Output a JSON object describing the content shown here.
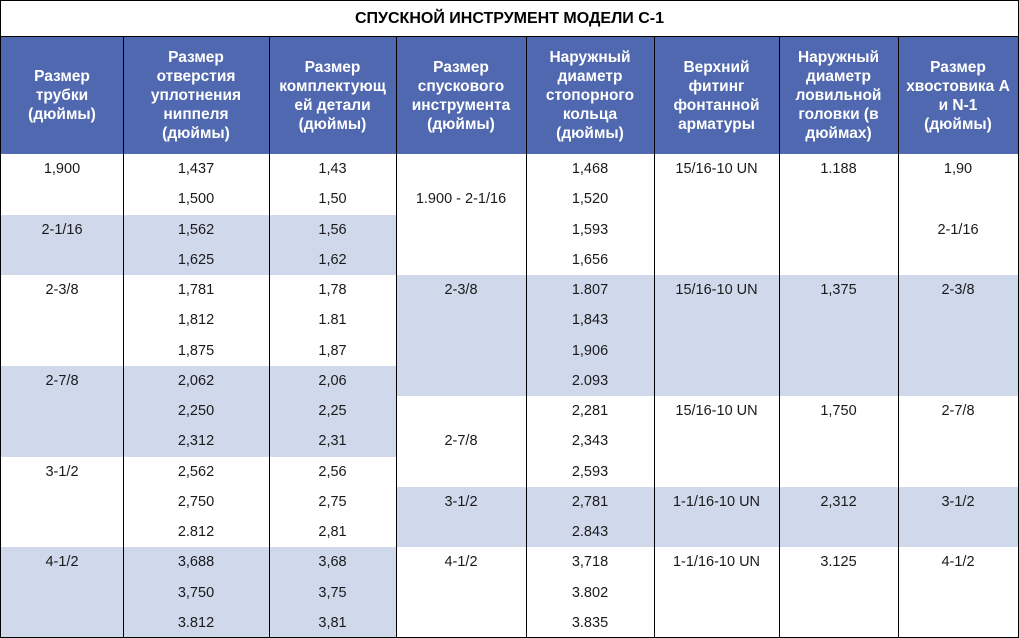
{
  "title": "СПУСКНОЙ ИНСТРУМЕНТ МОДЕЛИ С-1",
  "headers": [
    [
      "Размер",
      "трубки",
      "(дюймы)"
    ],
    [
      "Размер",
      "отверстия",
      "уплотнения",
      "ниппеля",
      "(дюймы)"
    ],
    [
      "Размер",
      "комплектующ",
      "ей детали",
      "(дюймы)"
    ],
    [
      "Размер",
      "спускового",
      "инструмента",
      "(дюймы)"
    ],
    [
      "Наружный",
      "диаметр",
      "стопорного",
      "кольца",
      "(дюймы)"
    ],
    [
      "Верхний",
      "фитинг",
      "фонтанной",
      "арматуры"
    ],
    [
      "Наружный",
      "диаметр",
      "ловильной",
      "головки (в",
      "дюймах)"
    ],
    [
      "Размер",
      "хвостовика А",
      "и N-1",
      "(дюймы)"
    ]
  ],
  "columns": {
    "tube_size": [
      {
        "row": 0,
        "text": "1,900"
      },
      {
        "row": 2,
        "text": "2-1/16"
      },
      {
        "row": 4,
        "text": "2-3/8"
      },
      {
        "row": 7,
        "text": "2-7/8"
      },
      {
        "row": 10,
        "text": "3-1/2"
      },
      {
        "row": 13,
        "text": "4-1/2"
      }
    ],
    "nipple_bore": [
      "1,437",
      "1,500",
      "1,562",
      "1,625",
      "1,781",
      "1,812",
      "1,875",
      "2,062",
      "2,250",
      "2,312",
      "2,562",
      "2,750",
      "2.812",
      "3,688",
      "3,750",
      "3.812"
    ],
    "component_size": [
      "1,43",
      "1,50",
      "1,56",
      "1,62",
      "1,78",
      "1.81",
      "1,87",
      "2,06",
      "2,25",
      "2,31",
      "2,56",
      "2,75",
      "2,81",
      "3,68",
      "3,75",
      "3,81"
    ],
    "tool_size": [
      {
        "row": 1,
        "text": "1.900 - 2-1/16"
      },
      {
        "row": 4,
        "text": "2-3/8"
      },
      {
        "row": 9,
        "text": "2-7/8"
      },
      {
        "row": 11,
        "text": "3-1/2"
      },
      {
        "row": 13,
        "text": "4-1/2"
      }
    ],
    "lock_ring_od": [
      "1,468",
      "1,520",
      "1,593",
      "1,656",
      "1.807",
      "1,843",
      "1,906",
      "2.093",
      "2,281",
      "2,343",
      "2,593",
      "2,781",
      "2.843",
      "3,718",
      "3.802",
      "3.835"
    ],
    "top_fitting": [
      {
        "row": 0,
        "text": "15/16-10 UN"
      },
      {
        "row": 4,
        "text": "15/16-10 UN"
      },
      {
        "row": 8,
        "text": "15/16-10 UN"
      },
      {
        "row": 11,
        "text": "1-1/16-10 UN"
      },
      {
        "row": 13,
        "text": "1-1/16-10 UN"
      }
    ],
    "fishing_neck_od": [
      {
        "row": 0,
        "text": "1.188"
      },
      {
        "row": 4,
        "text": "1,375"
      },
      {
        "row": 8,
        "text": "1,750"
      },
      {
        "row": 11,
        "text": "2,312"
      },
      {
        "row": 13,
        "text": "3.125"
      }
    ],
    "shank_size": [
      {
        "row": 0,
        "text": "1,90"
      },
      {
        "row": 2,
        "text": "2-1/16"
      },
      {
        "row": 4,
        "text": "2-3/8"
      },
      {
        "row": 8,
        "text": "2-7/8"
      },
      {
        "row": 11,
        "text": "3-1/2"
      },
      {
        "row": 13,
        "text": "4-1/2"
      }
    ]
  },
  "colors": {
    "header_bg": "#5068b0",
    "band_bg": "#d0d8ec",
    "header_text": "#ffffff",
    "body_text": "#1a1a1a"
  }
}
